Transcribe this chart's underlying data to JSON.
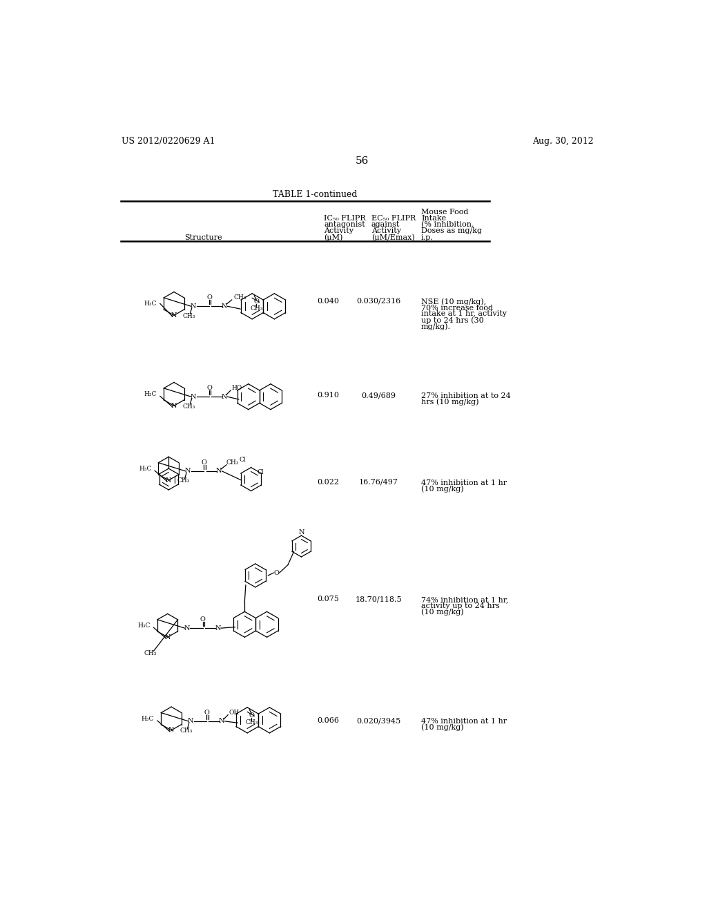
{
  "patent_number": "US 2012/0220629 A1",
  "patent_date": "Aug. 30, 2012",
  "page_number": "56",
  "table_title": "TABLE 1-continued",
  "col1_header": "Structure",
  "col2_header_lines": [
    "IC₅₀ FLIPR",
    "antagonist",
    "Activity",
    "(μM)"
  ],
  "col3_header_lines": [
    "EC₅₀ FLIPR",
    "against",
    "Activity",
    "(μM/Emax)"
  ],
  "col4_header_lines": [
    "Mouse Food",
    "Intake",
    "(% inhibition.",
    "Doses as mg/kg",
    "i.p."
  ],
  "rows": [
    {
      "ic50": "0.040",
      "ec50": "0.030/2316",
      "activity": [
        "NSE (10 mg/kg),",
        "70% increase food",
        "intake at 1 hr, activity",
        "up to 24 hrs (30",
        "mg/kg)."
      ]
    },
    {
      "ic50": "0.910",
      "ec50": "0.49/689",
      "activity": [
        "27% inhibition at to 24",
        "hrs (10 mg/kg)"
      ]
    },
    {
      "ic50": "0.022",
      "ec50": "16.76/497",
      "activity": [
        "47% inhibition at 1 hr",
        "(10 mg/kg)"
      ]
    },
    {
      "ic50": "0.075",
      "ec50": "18.70/118.5",
      "activity": [
        "74% inhibition at 1 hr,",
        "activity up to 24 hrs",
        "(10 mg/kg)"
      ]
    },
    {
      "ic50": "0.066",
      "ec50": "0.020/3945",
      "activity": [
        "47% inhibition at 1 hr",
        "(10 mg/kg)"
      ]
    }
  ],
  "bg_color": "#ffffff"
}
